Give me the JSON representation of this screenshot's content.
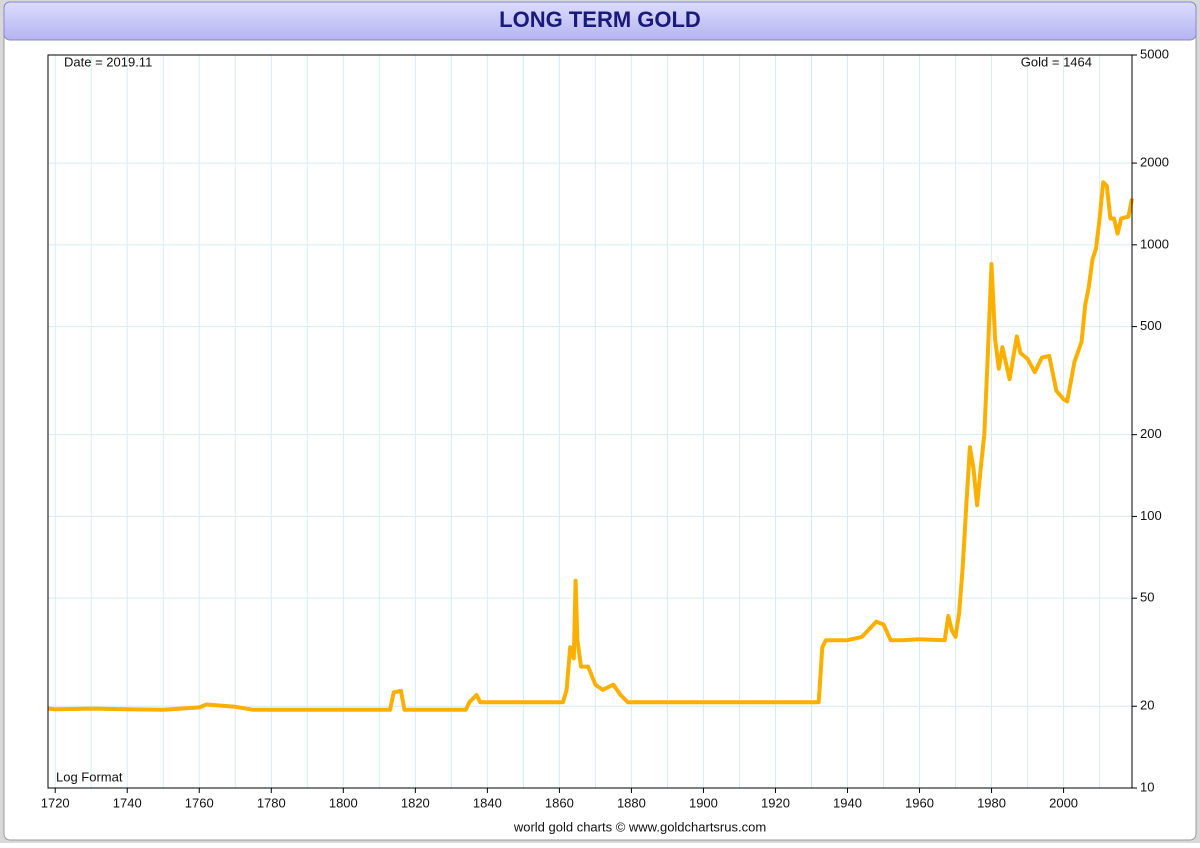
{
  "chart_data": {
    "type": "line",
    "title": "LONG TERM GOLD",
    "annotations": [
      "Date = 2019.11",
      "Gold = 1464",
      "Log Format"
    ],
    "footer": "world gold charts © www.goldchartsrus.com",
    "color": "#fbb000",
    "log_y": true,
    "grid": true,
    "xlim": [
      1718,
      2019
    ],
    "xticks": [
      1720,
      1740,
      1760,
      1780,
      1800,
      1820,
      1840,
      1860,
      1880,
      1900,
      1920,
      1940,
      1960,
      1980,
      2000
    ],
    "xgrid": [
      1720,
      1730,
      1740,
      1750,
      1760,
      1770,
      1780,
      1790,
      1800,
      1810,
      1820,
      1830,
      1840,
      1850,
      1860,
      1870,
      1880,
      1890,
      1900,
      1910,
      1920,
      1930,
      1940,
      1950,
      1960,
      1970,
      1980,
      1990,
      2000,
      2010
    ],
    "ylim": [
      10,
      5000
    ],
    "yticks": [
      10,
      20,
      50,
      100,
      200,
      500,
      1000,
      2000,
      5000
    ],
    "x": [
      1718,
      1720,
      1730,
      1740,
      1750,
      1760,
      1762,
      1770,
      1775,
      1800,
      1813,
      1814,
      1816,
      1817,
      1834,
      1835,
      1837,
      1838,
      1861,
      1862,
      1863,
      1864,
      1864.5,
      1865,
      1866,
      1868,
      1870,
      1872,
      1875,
      1877,
      1879,
      1932,
      1933,
      1934,
      1940,
      1944,
      1948,
      1950,
      1952,
      1955,
      1960,
      1967,
      1968,
      1969,
      1970,
      1971,
      1972,
      1973,
      1974,
      1975,
      1976,
      1977,
      1978,
      1979,
      1980,
      1981,
      1982,
      1983,
      1985,
      1987,
      1988,
      1990,
      1992,
      1994,
      1996,
      1998,
      2000,
      2001,
      2003,
      2005,
      2006,
      2007,
      2008,
      2009,
      2010,
      2011,
      2012,
      2013,
      2014,
      2015,
      2016,
      2017,
      2018,
      2019
    ],
    "values": [
      19.6,
      19.5,
      19.6,
      19.5,
      19.4,
      19.8,
      20.3,
      19.9,
      19.4,
      19.4,
      19.4,
      22.5,
      22.8,
      19.4,
      19.4,
      20.7,
      22,
      20.7,
      20.7,
      23,
      33,
      30,
      58,
      35,
      28,
      28,
      24,
      23,
      24,
      22,
      20.7,
      20.7,
      33,
      35,
      35,
      36,
      41,
      40,
      35,
      35,
      35.3,
      35,
      43,
      38,
      36,
      44,
      65,
      110,
      180,
      150,
      110,
      150,
      200,
      400,
      850,
      450,
      350,
      420,
      320,
      460,
      400,
      380,
      340,
      385,
      390,
      290,
      270,
      265,
      370,
      440,
      600,
      700,
      880,
      970,
      1250,
      1700,
      1650,
      1250,
      1250,
      1100,
      1250,
      1260,
      1270,
      1480
    ]
  }
}
